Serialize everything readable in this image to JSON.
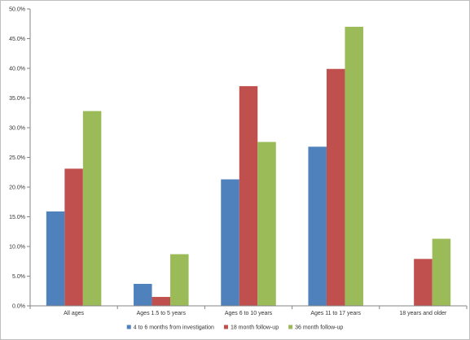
{
  "chart_data": {
    "type": "bar",
    "categories": [
      "All ages",
      "Ages 1.5 to 5 years",
      "Ages 6 to 10 years",
      "Ages 11 to 17 years",
      "18 years and older"
    ],
    "series": [
      {
        "name": "4 to 6 months from investigation",
        "color": "#4f81bd",
        "values": [
          15.9,
          3.7,
          21.3,
          26.8,
          null
        ]
      },
      {
        "name": "18 month follow-up",
        "color": "#c0504d",
        "values": [
          23.1,
          1.5,
          37.0,
          39.9,
          7.9
        ]
      },
      {
        "name": "36 month follow-up",
        "color": "#9bbb59",
        "values": [
          32.8,
          8.7,
          27.6,
          47.0,
          11.3
        ]
      }
    ],
    "yticks": [
      "0.0%",
      "5.0%",
      "10.0%",
      "15.0%",
      "20.0%",
      "25.0%",
      "30.0%",
      "35.0%",
      "40.0%",
      "45.0%",
      "50.0%"
    ],
    "ylim": [
      0,
      50
    ],
    "ystep": 5,
    "grid": false,
    "legend_position": "bottom"
  }
}
